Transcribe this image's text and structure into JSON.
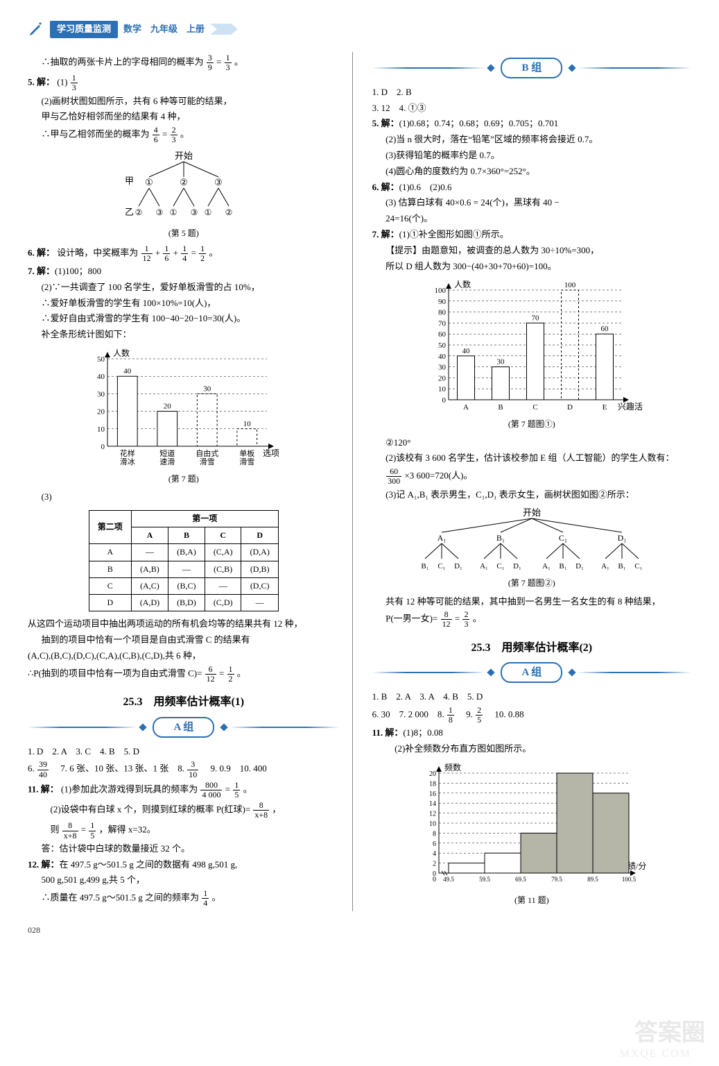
{
  "header": {
    "badge": "学习质量监测",
    "subject": "数学　九年级　上册"
  },
  "left": {
    "p_intro": "∴抽取的两张卡片上的字母相同的概率为",
    "p_intro_frac_a": "3",
    "p_intro_frac_b": "9",
    "p_intro_eq": "=",
    "p_intro_frac_c": "1",
    "p_intro_frac_d": "3",
    "p_intro_end": "。",
    "q5_label": "5. 解：",
    "q5_1": "(1)",
    "q5_1_frac_n": "1",
    "q5_1_frac_d": "3",
    "q5_2a": "(2)画树状图如图所示，共有 6 种等可能的结果，",
    "q5_2b": "甲与乙恰好相邻而坐的结果有 4 种，",
    "q5_2c_pre": "∴甲与乙相邻而坐的概率为",
    "q5_2c_f1n": "4",
    "q5_2c_f1d": "6",
    "q5_2c_eq": "=",
    "q5_2c_f2n": "2",
    "q5_2c_f2d": "3",
    "q5_2c_end": "。",
    "tree5": {
      "start": "开始",
      "row1_label": "甲",
      "row1": [
        "①",
        "②",
        "③"
      ],
      "row2_label": "乙",
      "row2": [
        [
          "②",
          "③"
        ],
        [
          "①",
          "③"
        ],
        [
          "①",
          "②"
        ]
      ],
      "caption": "(第 5 题)"
    },
    "q6_label": "6. 解：",
    "q6_text_pre": "设计略，中奖概率为",
    "q6_f1n": "1",
    "q6_f1d": "12",
    "q6_plus1": "+",
    "q6_f2n": "1",
    "q6_f2d": "6",
    "q6_plus2": "+",
    "q6_f3n": "1",
    "q6_f3d": "4",
    "q6_eq": "=",
    "q6_f4n": "1",
    "q6_f4d": "2",
    "q6_end": "。",
    "q7_label": "7. 解：",
    "q7_1": "(1)100；800",
    "q7_2a": "(2)∵一共调查了 100 名学生，爱好单板滑雪的占 10%，",
    "q7_2b": "∴爱好单板滑雪的学生有 100×10%=10(人)，",
    "q7_2c": "∴爱好自由式滑雪的学生有 100−40−20−10=30(人)。",
    "q7_2d": "补全条形统计图如下：",
    "chart7": {
      "ylabel": "人数",
      "ticks": [
        0,
        10,
        20,
        30,
        40,
        50
      ],
      "bars": [
        {
          "label": "花样\n滑冰",
          "value": 40,
          "show": "40"
        },
        {
          "label": "短道\n速滑",
          "value": 20,
          "show": "20"
        },
        {
          "label": "自由式\n滑雪",
          "value": 30,
          "show": "30",
          "dashed": true
        },
        {
          "label": "单板\n滑雪",
          "value": 10,
          "show": "10",
          "dashed": true
        }
      ],
      "xlabel": "选项",
      "caption": "(第 7 题)"
    },
    "q7_3_label": "(3)",
    "table7": {
      "corner": "第二项",
      "header_span": "第一项",
      "cols": [
        "A",
        "B",
        "C",
        "D"
      ],
      "rows": [
        {
          "h": "A",
          "cells": [
            "—",
            "(B,A)",
            "(C,A)",
            "(D,A)"
          ]
        },
        {
          "h": "B",
          "cells": [
            "(A,B)",
            "—",
            "(C,B)",
            "(D,B)"
          ]
        },
        {
          "h": "C",
          "cells": [
            "(A,C)",
            "(B,C)",
            "—",
            "(D,C)"
          ]
        },
        {
          "h": "D",
          "cells": [
            "(A,D)",
            "(B,D)",
            "(C,D)",
            "—"
          ]
        }
      ]
    },
    "q7_3a": "从这四个运动项目中抽出两项运动的所有机会均等的结果共有 12 种，",
    "q7_3b": "抽到的项目中恰有一个项目是自由式滑雪 C 的结果有",
    "q7_3c": "(A,C),(B,C),(D,C),(C,A),(C,B),(C,D),共 6 种，",
    "q7_3d_pre": "∴P(抽到的项目中恰有一项为自由式滑雪 C)=",
    "q7_3d_f1n": "6",
    "q7_3d_f1d": "12",
    "q7_3d_eq": "=",
    "q7_3d_f2n": "1",
    "q7_3d_f2d": "2",
    "q7_3d_end": "。",
    "sec_title": "25.3　用频率估计概率(1)",
    "groupA": "A 组",
    "A_row1": "1. D　2. A　3. C　4. B　5. D",
    "A6_pre": "6. ",
    "A6_fn": "39",
    "A6_fd": "40",
    "A7": "　7. 6 张、10 张、13 张、1 张　8. ",
    "A8_fn": "3",
    "A8_fd": "10",
    "A_tail": "　9. 0.9　10. 400",
    "A11_label": "11. 解：",
    "A11_1_pre": "(1)参加此次游戏得到玩具的频率为",
    "A11_1_f1n": "800",
    "A11_1_f1d": "4 000",
    "A11_1_eq": "=",
    "A11_1_f2n": "1",
    "A11_1_f2d": "5",
    "A11_1_end": "。",
    "A11_2_pre": "(2)设袋中有白球 x 个，则摸到红球的概率 P(红球)=",
    "A11_2_fn": "8",
    "A11_2_fd": "x+8",
    "A11_2_end": "，",
    "A11_3_pre": "则",
    "A11_3_f1n": "8",
    "A11_3_f1d": "x+8",
    "A11_3_eq": "=",
    "A11_3_f2n": "1",
    "A11_3_f2d": "5",
    "A11_3_tail": "，解得 x=32。",
    "A11_4": "答：估计袋中白球的数量接近 32 个。",
    "A12_label": "12. 解：",
    "A12_a": "在 497.5 g～501.5 g 之间的数据有 498 g,501 g,",
    "A12_b": "500 g,501 g,499 g,共 5 个，",
    "A12_c_pre": "∴质量在 497.5 g～501.5 g 之间的频率为",
    "A12_c_fn": "1",
    "A12_c_fd": "4",
    "A12_c_end": "。"
  },
  "right": {
    "groupB": "B 组",
    "B_row1": "1. D　2. B",
    "B_row2": "3. 12　4. ①③",
    "B5_label": "5. 解：",
    "B5_1": "(1)0.68；0.74；0.68；0.69；0.705；0.701",
    "B5_2": "(2)当 n 很大时，落在“铅笔”区域的频率将会接近 0.7。",
    "B5_3": "(3)获得铅笔的概率约是 0.7。",
    "B5_4": "(4)圆心角的度数约为 0.7×360°=252°。",
    "B6_label": "6. 解：",
    "B6_1": "(1)0.6　(2)0.6",
    "B6_3a": "(3) 估算白球有 40×0.6 = 24(个)，黑球有 40 −",
    "B6_3b": "24=16(个)。",
    "B7_label": "7. 解：",
    "B7_1": "(1)①补全图形如图①所示。",
    "B7_hint": "【提示】由题意知，被调查的总人数为 30÷10%=300，",
    "B7_hint2": "所以 D 组人数为 300−(40+30+70+60)=100。",
    "chartB7": {
      "ylabel": "人数",
      "ticks": [
        0,
        10,
        20,
        30,
        40,
        50,
        60,
        70,
        80,
        90,
        100
      ],
      "bars": [
        {
          "label": "A",
          "value": 40,
          "show": "40"
        },
        {
          "label": "B",
          "value": 30,
          "show": "30"
        },
        {
          "label": "C",
          "value": 70,
          "show": "70"
        },
        {
          "label": "D",
          "value": 100,
          "show": "100",
          "dashed": true
        },
        {
          "label": "E",
          "value": 60,
          "show": "60"
        }
      ],
      "xlabel": "兴趣活动小组",
      "caption": "(第 7 题图①)"
    },
    "B7_2_120": "②120°",
    "B7_2a": "(2)该校有 3 600 名学生，估计该校参加 E 组（人工智能）的学生人数有：",
    "B7_2b_f1n": "60",
    "B7_2b_f1d": "300",
    "B7_2b_mid": "×3 600=720(人)。",
    "B7_3a": "(3)记 A₁,B₁ 表示男生，C₁,D₁ 表示女生，画树状图如图②所示：",
    "treeB7": {
      "start": "开始",
      "row1": [
        "A₁",
        "B₁",
        "C₁",
        "D₁"
      ],
      "row2": [
        [
          "B₁",
          "C₁",
          "D₁"
        ],
        [
          "A₁",
          "C₁",
          "D₁"
        ],
        [
          "A₁",
          "B₁",
          "D₁"
        ],
        [
          "A₁",
          "B₁",
          "C₁"
        ]
      ],
      "caption": "(第 7 题图②)"
    },
    "B7_3b": "共有 12 种等可能的结果，其中抽到一名男生一名女生的有 8 种结果，",
    "B7_3c_pre": "P(一男一女)=",
    "B7_3c_f1n": "8",
    "B7_3c_f1d": "12",
    "B7_3c_eq": "=",
    "B7_3c_f2n": "2",
    "B7_3c_f2d": "3",
    "B7_3c_end": "。",
    "sec_title2": "25.3　用频率估计概率(2)",
    "groupA2": "A 组",
    "A2_row1": "1. B　2. A　3. A　4. B　5. D",
    "A2_row2_pre": "6. 30　7. 2 000　8. ",
    "A2_8_fn": "1",
    "A2_8_fd": "8",
    "A2_row2_mid": "　9. ",
    "A2_9_fn": "2",
    "A2_9_fd": "5",
    "A2_row2_tail": "　10. 0.88",
    "A2_11_label": "11. 解：",
    "A2_11_1": "(1)8；0.08",
    "A2_11_2": "(2)补全频数分布直方图如图所示。",
    "hist11": {
      "ylabel": "频数",
      "ticks": [
        0,
        2,
        4,
        6,
        8,
        10,
        12,
        14,
        16,
        18,
        20
      ],
      "bins": [
        {
          "x": "49.5",
          "value": 2
        },
        {
          "x": "59.5",
          "value": 4
        },
        {
          "x": "69.5",
          "value": 8,
          "shaded": true
        },
        {
          "x": "79.5",
          "value": 20,
          "shaded": true
        },
        {
          "x": "89.5",
          "value": 16,
          "shaded": true
        },
        {
          "x": "100.5",
          "value": 0
        }
      ],
      "xlabel": "成绩/分",
      "caption": "(第 11 题)"
    }
  },
  "page_number": "028",
  "watermark_circle": "答案圈",
  "watermark_url": "MXQE.COM"
}
